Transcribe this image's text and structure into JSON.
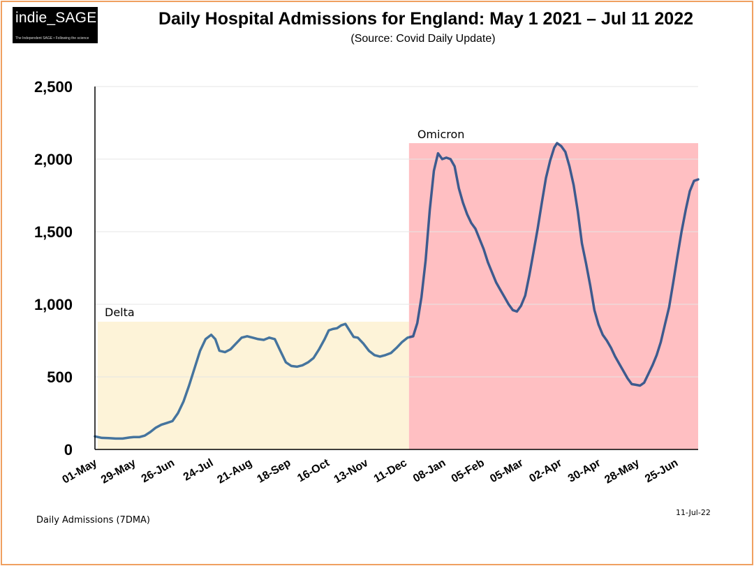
{
  "logo": {
    "name": "indie_SAGE",
    "tagline": "The Independent SAGE • Following the science"
  },
  "header": {
    "title": "Daily Hospital Admissions for England: May 1 2021 – Jul 11 2022",
    "subtitle": "(Source: Covid Daily Update)"
  },
  "footer": {
    "series_label": "Daily Admissions (7DMA)",
    "date": "11-Jul-22"
  },
  "colors": {
    "line": "#45749e",
    "line_omicron": "#3d5a8e",
    "delta_fill": "#fdf3d8",
    "omicron_fill": "#ffbfc2",
    "axis": "#000000",
    "grid": "#e4e4e4",
    "frame": "#f0a060"
  },
  "chart_data": {
    "type": "line",
    "title": "Daily Hospital Admissions for England: May 1 2021 – Jul 11 2022",
    "xlabel": "",
    "ylabel": "Daily Admissions (7DMA)",
    "ylim": [
      0,
      2500
    ],
    "xlim_days": [
      0,
      436
    ],
    "yticks": [
      0,
      500,
      1000,
      1500,
      2000,
      2500
    ],
    "ytick_labels": [
      "0",
      "500",
      "1,000",
      "1,500",
      "2,000",
      "2,500"
    ],
    "xtick_labels": [
      "01-May",
      "29-May",
      "26-Jun",
      "24-Jul",
      "21-Aug",
      "18-Sep",
      "16-Oct",
      "13-Nov",
      "11-Dec",
      "08-Jan",
      "05-Feb",
      "05-Mar",
      "02-Apr",
      "30-Apr",
      "28-May",
      "25-Jun"
    ],
    "xtick_step_days": 28,
    "regions": [
      {
        "label": "Delta",
        "start_day": 0,
        "end_day": 227,
        "top": 880
      },
      {
        "label": "Omicron",
        "start_day": 227,
        "end_day": 436,
        "top": 2110
      }
    ],
    "series": [
      {
        "name": "Daily Admissions (7DMA)",
        "points": [
          [
            0,
            90
          ],
          [
            5,
            80
          ],
          [
            10,
            78
          ],
          [
            15,
            75
          ],
          [
            20,
            75
          ],
          [
            25,
            82
          ],
          [
            28,
            85
          ],
          [
            32,
            85
          ],
          [
            36,
            95
          ],
          [
            40,
            120
          ],
          [
            44,
            150
          ],
          [
            48,
            170
          ],
          [
            52,
            182
          ],
          [
            56,
            195
          ],
          [
            60,
            250
          ],
          [
            64,
            330
          ],
          [
            68,
            440
          ],
          [
            72,
            560
          ],
          [
            76,
            680
          ],
          [
            80,
            760
          ],
          [
            84,
            790
          ],
          [
            87,
            760
          ],
          [
            90,
            680
          ],
          [
            94,
            670
          ],
          [
            98,
            690
          ],
          [
            102,
            730
          ],
          [
            106,
            770
          ],
          [
            110,
            780
          ],
          [
            114,
            770
          ],
          [
            118,
            760
          ],
          [
            122,
            755
          ],
          [
            126,
            770
          ],
          [
            130,
            760
          ],
          [
            134,
            680
          ],
          [
            138,
            600
          ],
          [
            142,
            575
          ],
          [
            146,
            570
          ],
          [
            150,
            580
          ],
          [
            154,
            600
          ],
          [
            158,
            630
          ],
          [
            162,
            690
          ],
          [
            166,
            760
          ],
          [
            169,
            820
          ],
          [
            172,
            830
          ],
          [
            175,
            835
          ],
          [
            178,
            855
          ],
          [
            181,
            865
          ],
          [
            184,
            820
          ],
          [
            187,
            775
          ],
          [
            190,
            770
          ],
          [
            194,
            730
          ],
          [
            198,
            680
          ],
          [
            202,
            650
          ],
          [
            206,
            640
          ],
          [
            210,
            650
          ],
          [
            214,
            665
          ],
          [
            218,
            700
          ],
          [
            222,
            740
          ],
          [
            226,
            770
          ],
          [
            228,
            775
          ],
          [
            230,
            780
          ],
          [
            233,
            870
          ],
          [
            236,
            1050
          ],
          [
            239,
            1300
          ],
          [
            242,
            1650
          ],
          [
            245,
            1920
          ],
          [
            248,
            2040
          ],
          [
            251,
            2000
          ],
          [
            254,
            2010
          ],
          [
            257,
            2000
          ],
          [
            260,
            1950
          ],
          [
            263,
            1800
          ],
          [
            266,
            1700
          ],
          [
            269,
            1620
          ],
          [
            272,
            1560
          ],
          [
            275,
            1520
          ],
          [
            278,
            1450
          ],
          [
            281,
            1380
          ],
          [
            284,
            1290
          ],
          [
            287,
            1220
          ],
          [
            290,
            1150
          ],
          [
            293,
            1100
          ],
          [
            296,
            1050
          ],
          [
            299,
            1000
          ],
          [
            302,
            960
          ],
          [
            305,
            950
          ],
          [
            308,
            990
          ],
          [
            311,
            1060
          ],
          [
            314,
            1200
          ],
          [
            317,
            1360
          ],
          [
            320,
            1520
          ],
          [
            323,
            1700
          ],
          [
            326,
            1870
          ],
          [
            329,
            1990
          ],
          [
            332,
            2080
          ],
          [
            334,
            2110
          ],
          [
            337,
            2090
          ],
          [
            340,
            2050
          ],
          [
            343,
            1950
          ],
          [
            346,
            1820
          ],
          [
            349,
            1640
          ],
          [
            352,
            1420
          ],
          [
            355,
            1280
          ],
          [
            358,
            1130
          ],
          [
            361,
            960
          ],
          [
            364,
            860
          ],
          [
            367,
            790
          ],
          [
            370,
            750
          ],
          [
            373,
            700
          ],
          [
            376,
            640
          ],
          [
            379,
            590
          ],
          [
            382,
            540
          ],
          [
            385,
            490
          ],
          [
            388,
            450
          ],
          [
            391,
            445
          ],
          [
            394,
            440
          ],
          [
            397,
            460
          ],
          [
            400,
            520
          ],
          [
            403,
            580
          ],
          [
            406,
            650
          ],
          [
            409,
            740
          ],
          [
            412,
            860
          ],
          [
            415,
            980
          ],
          [
            418,
            1150
          ],
          [
            421,
            1330
          ],
          [
            424,
            1500
          ],
          [
            427,
            1650
          ],
          [
            430,
            1780
          ],
          [
            433,
            1850
          ],
          [
            436,
            1860
          ]
        ]
      }
    ]
  }
}
